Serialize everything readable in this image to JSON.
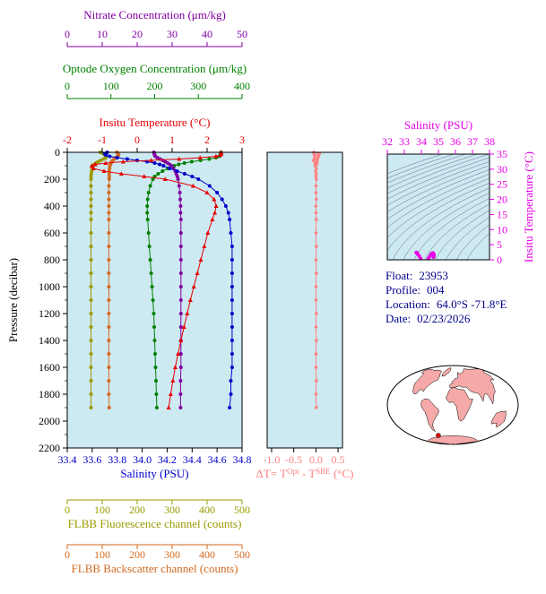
{
  "colors": {
    "plot_bg": "#cde9f2",
    "nitrate": "#8000a0",
    "oxygen": "#008000",
    "temperature": "#e60000",
    "salinity": "#0000cc",
    "fluorescence": "#9a9a00",
    "backscatter": "#d2691e",
    "delta_t": "#ff8080",
    "ts": "#e600e6",
    "contour": "#4a4a70",
    "info_text": "#00008b",
    "map_land": "#f5a9a9"
  },
  "info": {
    "rows": [
      {
        "label": "Float:",
        "value": "23953"
      },
      {
        "label": "Profile:",
        "value": "004"
      },
      {
        "label": "Location:",
        "value": "64.0°S  -71.8°E"
      },
      {
        "label": "Date:",
        "value": "02/23/2026"
      }
    ]
  },
  "map": {
    "marker_lon": -71.8,
    "marker_lat": -64.0
  },
  "chart_data": [
    {
      "name": "profiles",
      "type": "line",
      "ylabel": "Pressure (decibar)",
      "ylim": [
        0,
        2200
      ],
      "yticks": [
        0,
        200,
        400,
        600,
        800,
        1000,
        1200,
        1400,
        1600,
        1800,
        2000,
        2200
      ],
      "pressure": [
        0,
        10,
        20,
        30,
        40,
        50,
        60,
        70,
        80,
        90,
        100,
        120,
        140,
        160,
        180,
        200,
        250,
        300,
        350,
        400,
        450,
        500,
        600,
        700,
        800,
        900,
        1000,
        1100,
        1200,
        1300,
        1400,
        1500,
        1600,
        1700,
        1800,
        1900
      ],
      "series": [
        {
          "id": "nitrate",
          "label": "Nitrate Concentration (μm/kg)",
          "color": "#8000a0",
          "xlim": [
            0,
            50
          ],
          "xticks": [
            "0",
            "10",
            "20",
            "30",
            "40",
            "50"
          ],
          "values": [
            24.8,
            24.9,
            25.0,
            25.2,
            25.8,
            26.5,
            27.3,
            28.0,
            28.7,
            29.3,
            29.8,
            30.4,
            30.9,
            31.2,
            31.5,
            31.7,
            32.0,
            32.2,
            32.3,
            32.4,
            32.4,
            32.5,
            32.5,
            32.5,
            32.5,
            32.5,
            32.5,
            32.5,
            32.5,
            32.5,
            32.5,
            32.5,
            32.5,
            32.4,
            32.4,
            32.4
          ]
        },
        {
          "id": "oxygen",
          "label": "Optode Oxygen Concentration (μm/kg)",
          "color": "#008000",
          "xlim": [
            0,
            400
          ],
          "xticks": [
            "0",
            "100",
            "200",
            "300",
            "400"
          ],
          "values": [
            352,
            351,
            350,
            348,
            340,
            325,
            305,
            285,
            268,
            255,
            245,
            230,
            218,
            208,
            200,
            196,
            190,
            186,
            184,
            183,
            183,
            184,
            186,
            188,
            190,
            192,
            194,
            196,
            198,
            199,
            200,
            201,
            202,
            203,
            204,
            205
          ]
        },
        {
          "id": "temperature",
          "label": "Insitu Temperature (°C)",
          "color": "#e60000",
          "xlim": [
            -2,
            3
          ],
          "marker": "triangle",
          "xticks": [
            "-2",
            "-1",
            "0",
            "1",
            "2",
            "3"
          ],
          "values": [
            2.4,
            2.41,
            2.38,
            2.25,
            1.8,
            1.2,
            0.4,
            -0.4,
            -0.9,
            -1.2,
            -1.3,
            -1.25,
            -0.95,
            -0.45,
            0.2,
            0.8,
            1.6,
            2.0,
            2.2,
            2.26,
            2.22,
            2.15,
            2.02,
            1.92,
            1.82,
            1.72,
            1.62,
            1.52,
            1.43,
            1.34,
            1.25,
            1.17,
            1.09,
            1.02,
            0.96,
            0.9
          ]
        },
        {
          "id": "salinity",
          "label": "Salinity (PSU)",
          "color": "#0000cc",
          "xlim": [
            33.4,
            34.8
          ],
          "xticks": [
            "33.4",
            "33.6",
            "33.8",
            "34.0",
            "34.2",
            "34.4",
            "34.6",
            "34.8"
          ],
          "values": [
            33.72,
            33.7,
            33.71,
            33.74,
            33.8,
            33.88,
            33.96,
            34.04,
            34.1,
            34.14,
            34.17,
            34.22,
            34.28,
            34.34,
            34.4,
            34.45,
            34.54,
            34.6,
            34.64,
            34.67,
            34.69,
            34.7,
            34.71,
            34.72,
            34.72,
            34.72,
            34.72,
            34.72,
            34.72,
            34.72,
            34.72,
            34.72,
            34.72,
            34.71,
            34.71,
            34.7
          ]
        },
        {
          "id": "fluorescence",
          "label": "FLBB Fluorescence channel (counts)",
          "color": "#9a9a00",
          "xlim": [
            0,
            500
          ],
          "xticks": [
            "0",
            "100",
            "200",
            "300",
            "400",
            "500"
          ],
          "values": [
            95,
            102,
            108,
            112,
            110,
            104,
            96,
            88,
            82,
            77,
            74,
            71,
            70,
            69,
            68,
            68,
            68,
            68,
            68,
            68,
            68,
            68,
            68,
            68,
            68,
            68,
            68,
            68,
            68,
            68,
            68,
            68,
            68,
            68,
            68,
            68
          ]
        },
        {
          "id": "backscatter",
          "label": "FLBB Backscatter channel (counts)",
          "color": "#d2691e",
          "xlim": [
            0,
            500
          ],
          "xticks": [
            "0",
            "100",
            "200",
            "300",
            "400",
            "500"
          ],
          "values": [
            142,
            145,
            147,
            144,
            139,
            134,
            130,
            127,
            125,
            123,
            122,
            121,
            120,
            120,
            120,
            120,
            119,
            119,
            119,
            119,
            119,
            119,
            119,
            119,
            119,
            119,
            119,
            119,
            119,
            119,
            119,
            119,
            119,
            119,
            119,
            120
          ]
        }
      ]
    },
    {
      "name": "delta_t",
      "type": "line",
      "title_parts": [
        {
          "t": "ΔT= T"
        },
        {
          "t": "Opt",
          "sup": true
        },
        {
          "t": " - T"
        },
        {
          "t": "SBE",
          "sup": true
        },
        {
          "t": " (°C)"
        }
      ],
      "color": "#ff8080",
      "xlim": [
        -1.1,
        0.6
      ],
      "xticks": [
        "-1.0",
        "-0.5",
        "0.0",
        "0.5"
      ],
      "ylim": [
        0,
        2200
      ],
      "pressure": [
        0,
        10,
        20,
        30,
        40,
        50,
        60,
        70,
        80,
        90,
        100,
        120,
        140,
        160,
        180,
        200,
        250,
        300,
        350,
        400,
        450,
        500,
        600,
        700,
        800,
        900,
        1000,
        1100,
        1200,
        1300,
        1400,
        1500,
        1600,
        1700,
        1800,
        1900
      ],
      "values": [
        -0.05,
        0.08,
        -0.04,
        0.06,
        -0.03,
        0.04,
        -0.06,
        0.03,
        -0.02,
        0.02,
        -0.02,
        0.01,
        -0.01,
        0.01,
        0.0,
        0.01,
        0.0,
        0.0,
        0.01,
        0.0,
        0.0,
        0.01,
        0.0,
        0.01,
        0.0,
        0.01,
        0.0,
        0.0,
        0.01,
        0.0,
        0.01,
        0.0,
        0.0,
        0.01,
        0.0,
        0.01
      ]
    },
    {
      "name": "ts_diagram",
      "type": "scatter",
      "xlabel": "Salinity (PSU)",
      "ylabel": "Insitu Temperature (°C)",
      "xlim": [
        32,
        38
      ],
      "xticks": [
        "32",
        "33",
        "34",
        "35",
        "36",
        "37",
        "38"
      ],
      "ylim": [
        0,
        35
      ],
      "yticks": [
        "0",
        "5",
        "10",
        "15",
        "20",
        "25",
        "30",
        "35"
      ],
      "color": "#e600e6",
      "contours": {
        "type": "sigma-t",
        "from": 20,
        "to": 29.5,
        "step": 0.5
      },
      "salinity": [
        33.72,
        33.7,
        33.71,
        33.74,
        33.8,
        33.88,
        33.96,
        34.04,
        34.1,
        34.14,
        34.17,
        34.22,
        34.28,
        34.34,
        34.4,
        34.45,
        34.54,
        34.6,
        34.64,
        34.67,
        34.69,
        34.7,
        34.71,
        34.72,
        34.72,
        34.72,
        34.72,
        34.72,
        34.72,
        34.72,
        34.72,
        34.72,
        34.72,
        34.71,
        34.71,
        34.7
      ],
      "temperature": [
        2.4,
        2.41,
        2.38,
        2.25,
        1.8,
        1.2,
        0.4,
        -0.4,
        -0.9,
        -1.2,
        -1.3,
        -1.25,
        -0.95,
        -0.45,
        0.2,
        0.8,
        1.6,
        2.0,
        2.2,
        2.26,
        2.22,
        2.15,
        2.02,
        1.92,
        1.82,
        1.72,
        1.62,
        1.52,
        1.43,
        1.34,
        1.25,
        1.17,
        1.09,
        1.02,
        0.96,
        0.9
      ]
    }
  ]
}
